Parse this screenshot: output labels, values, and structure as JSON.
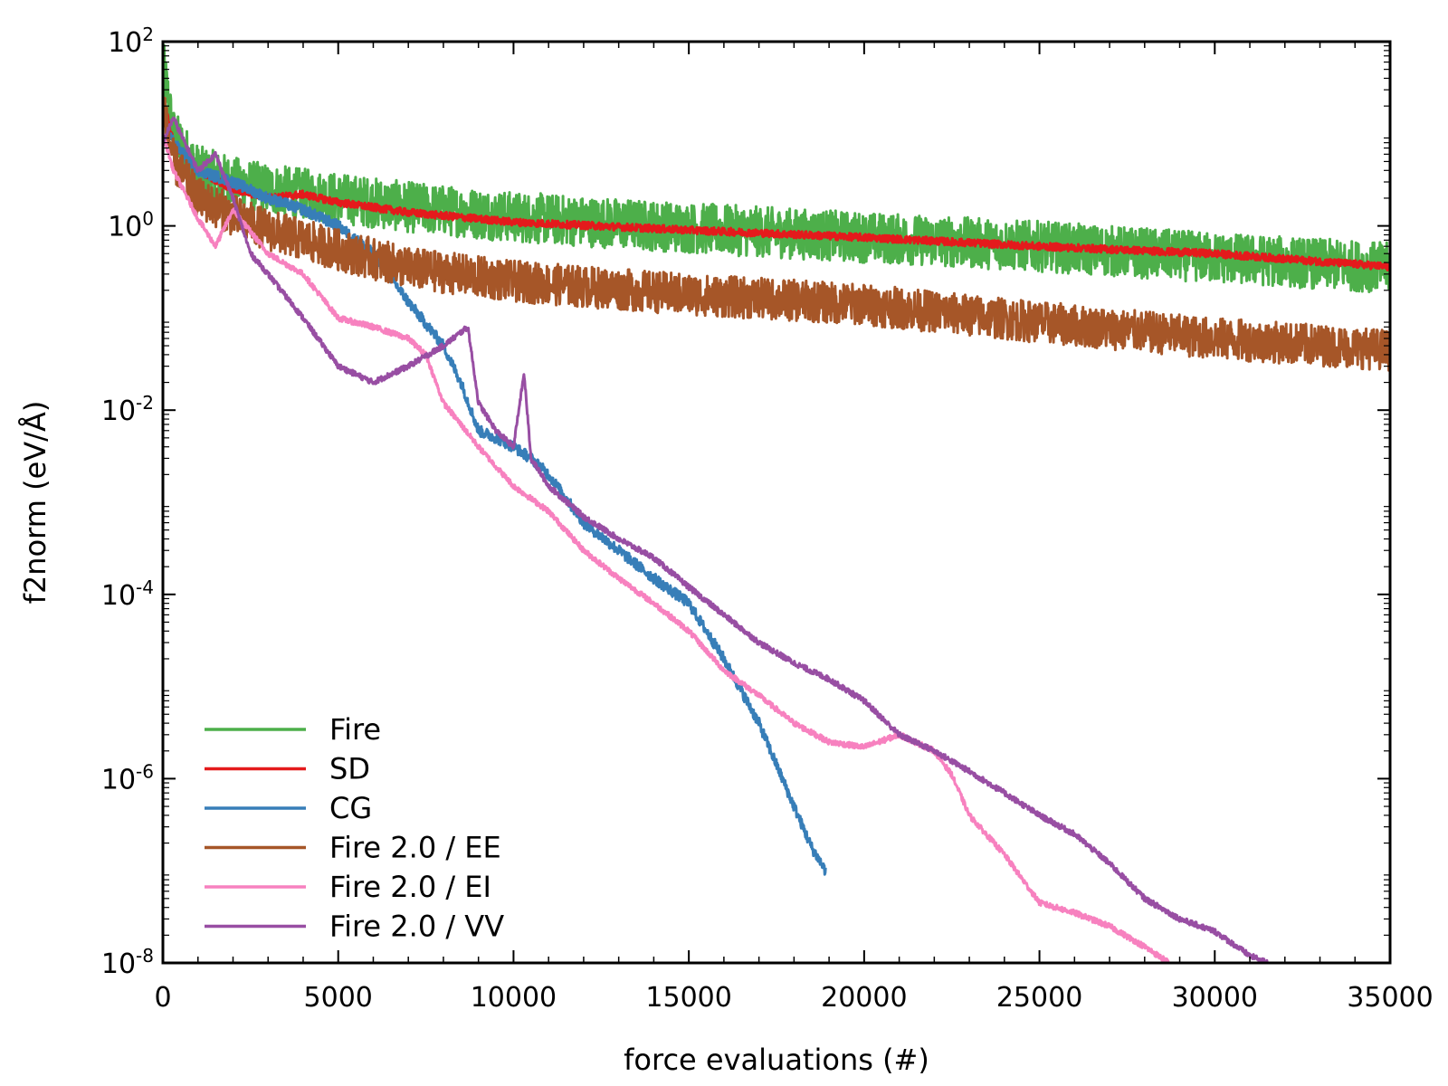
{
  "chart_data": {
    "type": "line",
    "title": "",
    "xlabel": "force evaluations (#)",
    "ylabel": "f2norm (eV/Å)",
    "xlim": [
      0,
      35000
    ],
    "ylim": [
      1e-08,
      100
    ],
    "y_scale": "log",
    "grid": false,
    "legend_position": "bottom-left",
    "x_ticks": [
      {
        "value": 0,
        "label": "0"
      },
      {
        "value": 5000,
        "label": "5000"
      },
      {
        "value": 10000,
        "label": "10000"
      },
      {
        "value": 15000,
        "label": "15000"
      },
      {
        "value": 20000,
        "label": "20000"
      },
      {
        "value": 25000,
        "label": "25000"
      },
      {
        "value": 30000,
        "label": "30000"
      },
      {
        "value": 35000,
        "label": "35000"
      }
    ],
    "y_ticks": [
      {
        "value": 100,
        "base": "10",
        "exp": "2"
      },
      {
        "value": 1,
        "base": "10",
        "exp": "0"
      },
      {
        "value": 0.01,
        "base": "10",
        "exp": "-2"
      },
      {
        "value": 0.0001,
        "base": "10",
        "exp": "-4"
      },
      {
        "value": 1e-06,
        "base": "10",
        "exp": "-6"
      },
      {
        "value": 1e-08,
        "base": "10",
        "exp": "-8"
      }
    ],
    "series": [
      {
        "name": "Fire",
        "color": "#4daf4a",
        "noise": 0.55,
        "x": [
          0,
          300,
          1000,
          2000,
          3000,
          5000,
          7000,
          10000,
          15000,
          20000,
          25000,
          30000,
          35000
        ],
        "y": [
          60,
          10,
          4.0,
          3.0,
          2.5,
          2.0,
          1.6,
          1.25,
          0.95,
          0.75,
          0.6,
          0.45,
          0.35
        ]
      },
      {
        "name": "SD",
        "color": "#e41a1c",
        "noise": 0.08,
        "x": [
          0,
          300,
          1000,
          2000,
          3000,
          4000,
          5000,
          7000,
          10000,
          15000,
          20000,
          25000,
          30000,
          35000
        ],
        "y": [
          25,
          8,
          4.0,
          2.5,
          2.0,
          2.2,
          1.8,
          1.4,
          1.1,
          0.9,
          0.75,
          0.6,
          0.5,
          0.36
        ]
      },
      {
        "name": "CG",
        "color": "#377eb8",
        "noise": 0.12,
        "x": [
          0,
          300,
          1000,
          2000,
          3000,
          4000,
          5000,
          6000,
          7000,
          8000,
          8500,
          9000,
          9500,
          10000,
          10500,
          11000,
          12000,
          13000,
          14000,
          15000,
          16000,
          17000,
          18000,
          18500,
          18900
        ],
        "y": [
          15,
          8,
          4.0,
          3.0,
          2.0,
          1.5,
          1.0,
          0.5,
          0.15,
          0.05,
          0.02,
          0.006,
          0.005,
          0.004,
          0.003,
          0.002,
          0.0006,
          0.0003,
          0.00015,
          8e-05,
          2e-05,
          4e-06,
          5e-07,
          1.8e-07,
          1e-07
        ]
      },
      {
        "name": "Fire 2.0 / EE",
        "color": "#a65628",
        "noise": 0.45,
        "x": [
          0,
          300,
          1000,
          2000,
          3000,
          5000,
          7000,
          10000,
          15000,
          20000,
          25000,
          30000,
          35000
        ],
        "y": [
          20,
          5,
          2.0,
          1.3,
          0.9,
          0.55,
          0.35,
          0.25,
          0.18,
          0.14,
          0.09,
          0.06,
          0.045
        ]
      },
      {
        "name": "Fire 2.0 / EI",
        "color": "#f781bf",
        "noise": 0.06,
        "x": [
          0,
          300,
          1000,
          1500,
          2000,
          3000,
          4000,
          5000,
          6000,
          7000,
          7500,
          8000,
          8500,
          9000,
          10000,
          11000,
          12000,
          13000,
          14000,
          15000,
          16000,
          17000,
          18000,
          19000,
          20000,
          21000,
          22000,
          22500,
          23000,
          24000,
          25000,
          26000,
          27000,
          28000,
          28700
        ],
        "y": [
          10,
          4,
          1.2,
          0.6,
          1.5,
          0.5,
          0.3,
          0.1,
          0.08,
          0.06,
          0.04,
          0.012,
          0.007,
          0.004,
          0.0015,
          0.0008,
          0.0003,
          0.00015,
          8e-05,
          4e-05,
          1.5e-05,
          8e-06,
          4e-06,
          2.5e-06,
          2.2e-06,
          3e-06,
          2e-06,
          1.1e-06,
          4e-07,
          1.5e-07,
          4.5e-08,
          3.5e-08,
          2.5e-08,
          1.5e-08,
          1e-08
        ]
      },
      {
        "name": "Fire 2.0 / VV",
        "color": "#984ea3",
        "noise": 0.06,
        "x": [
          0,
          300,
          500,
          1000,
          1500,
          2000,
          2500,
          3000,
          4000,
          5000,
          6000,
          7000,
          8000,
          8700,
          9000,
          9500,
          10000,
          10300,
          10500,
          11000,
          12000,
          13000,
          14000,
          15000,
          16000,
          17000,
          18000,
          19000,
          20000,
          21000,
          22000,
          23000,
          24000,
          25000,
          26000,
          27000,
          28000,
          29000,
          30000,
          31000,
          31500
        ],
        "y": [
          8,
          15,
          10,
          4,
          6,
          2,
          0.5,
          0.3,
          0.1,
          0.03,
          0.02,
          0.03,
          0.05,
          0.08,
          0.012,
          0.006,
          0.004,
          0.025,
          0.003,
          0.0015,
          0.0007,
          0.0004,
          0.00025,
          0.00012,
          6e-05,
          3e-05,
          1.8e-05,
          1.2e-05,
          7e-06,
          3e-06,
          2e-06,
          1.2e-06,
          7e-07,
          4e-07,
          2.5e-07,
          1.2e-07,
          5e-08,
          3e-08,
          2.2e-08,
          1.2e-08,
          1e-08
        ]
      }
    ]
  }
}
